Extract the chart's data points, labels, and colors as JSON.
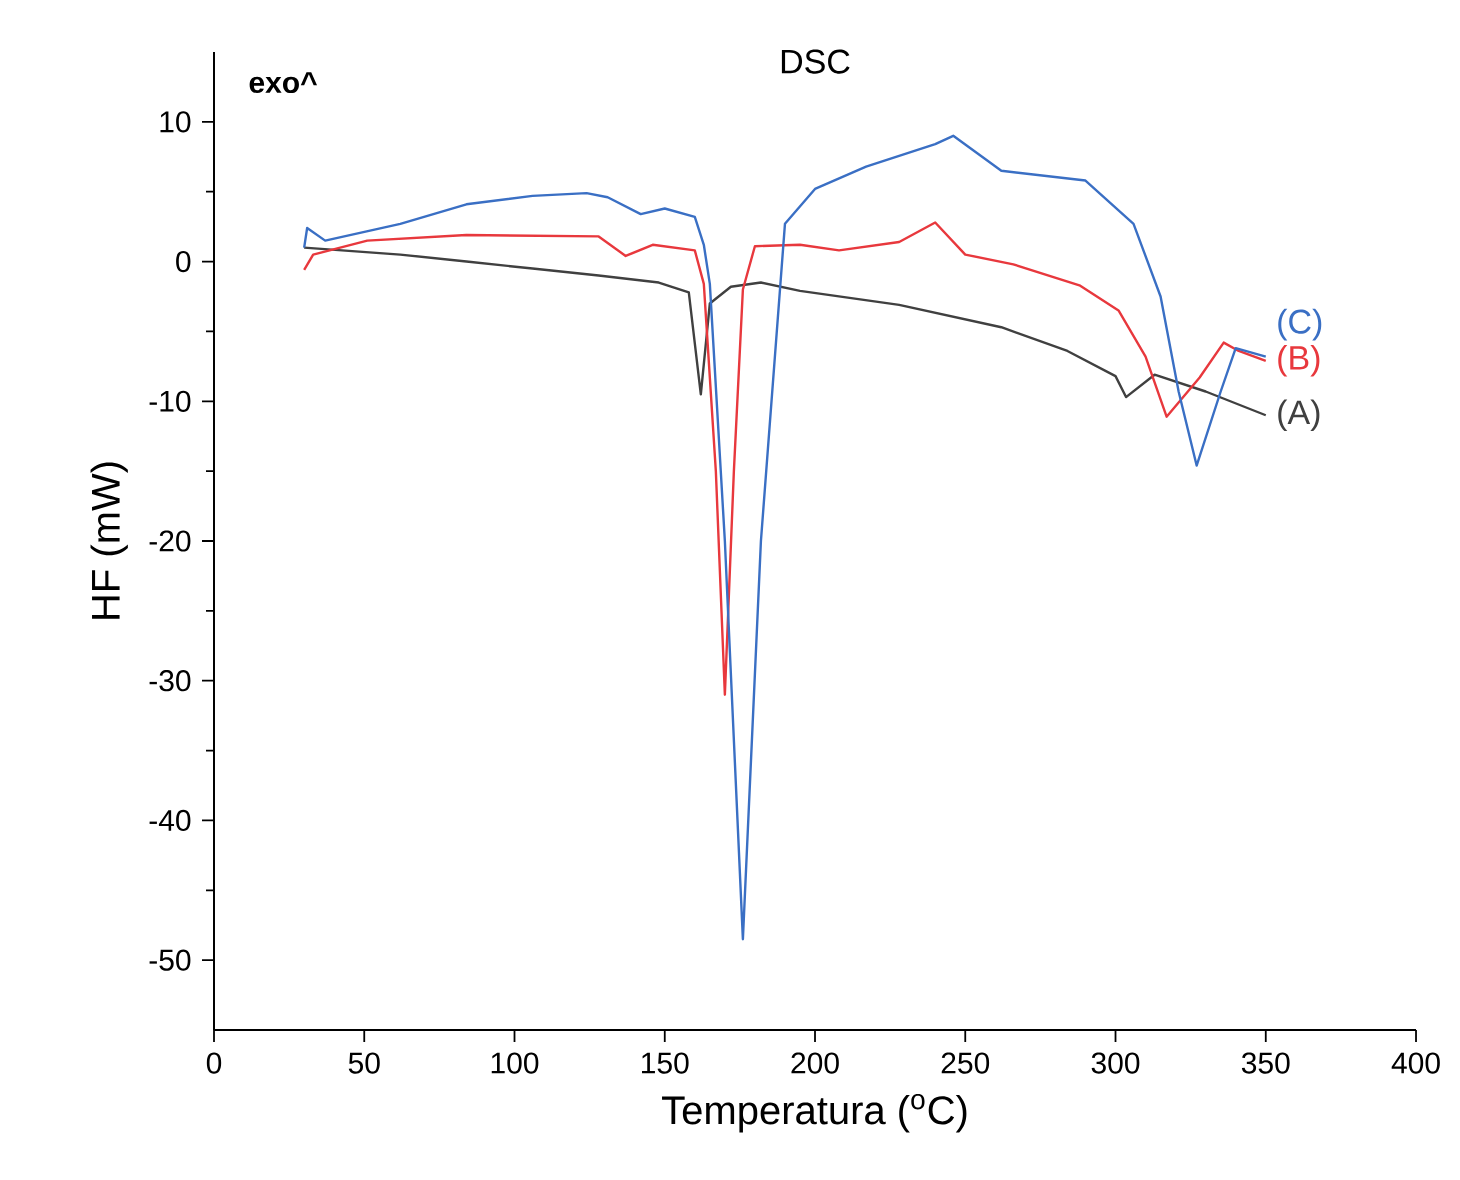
{
  "chart_data": {
    "type": "line",
    "title": "DSC",
    "xlabel": "Temperatura ($^{o}$C)",
    "ylabel": "HF (mW)",
    "annotations": [
      "exo^"
    ],
    "xlim": [
      0,
      400
    ],
    "ylim": [
      -55,
      15
    ],
    "xticks": [
      0,
      50,
      100,
      150,
      200,
      250,
      300,
      350,
      400
    ],
    "yticks": [
      -50,
      -40,
      -30,
      -20,
      -10,
      0,
      10
    ],
    "grid": false,
    "marker": "none",
    "line_style": "solid",
    "series": [
      {
        "name": "(A)",
        "color": "#404040",
        "x": [
          30,
          62,
          84,
          106,
          128,
          148,
          158,
          162,
          165,
          172,
          182,
          195,
          228,
          262,
          284,
          300,
          303.5,
          313,
          330,
          350
        ],
        "values": [
          1,
          0.5,
          0,
          -0.5,
          -1,
          -1.5,
          -2.2,
          -9.5,
          -3,
          -1.8,
          -1.5,
          -2.1,
          -3.1,
          -4.7,
          -6.4,
          -8.2,
          -9.7,
          -8.1,
          -9.3,
          -11
        ]
      },
      {
        "name": "(B)",
        "color": "#e8383d",
        "x": [
          30,
          33,
          51,
          84,
          128,
          137,
          146,
          160,
          163,
          167,
          170,
          173,
          176,
          180,
          195,
          208,
          228,
          240,
          250,
          266,
          288,
          301,
          310,
          317,
          328,
          336,
          341,
          350
        ],
        "values": [
          -0.6,
          0.5,
          1.5,
          1.9,
          1.8,
          0.4,
          1.2,
          0.8,
          -1.6,
          -15,
          -31,
          -15,
          -2,
          1.1,
          1.2,
          0.8,
          1.4,
          2.8,
          0.5,
          -0.2,
          -1.7,
          -3.5,
          -6.8,
          -11.1,
          -8.3,
          -5.8,
          -6.4,
          -7.1
        ]
      },
      {
        "name": "(C)",
        "color": "#3a6fc4",
        "x": [
          30,
          31,
          37,
          62,
          84,
          106,
          124,
          131,
          142,
          150,
          160,
          163,
          165,
          170,
          176,
          182,
          190,
          200,
          217,
          240,
          246,
          262,
          290,
          306,
          315,
          321,
          327,
          335,
          340,
          350
        ],
        "values": [
          1,
          2.4,
          1.5,
          2.7,
          4.1,
          4.7,
          4.9,
          4.6,
          3.4,
          3.8,
          3.2,
          1.2,
          -1.6,
          -20,
          -48.5,
          -20,
          2.7,
          5.2,
          6.8,
          8.4,
          9,
          6.5,
          5.8,
          2.7,
          -2.5,
          -9.3,
          -14.6,
          -9.3,
          -6.2,
          -6.8
        ]
      }
    ]
  }
}
